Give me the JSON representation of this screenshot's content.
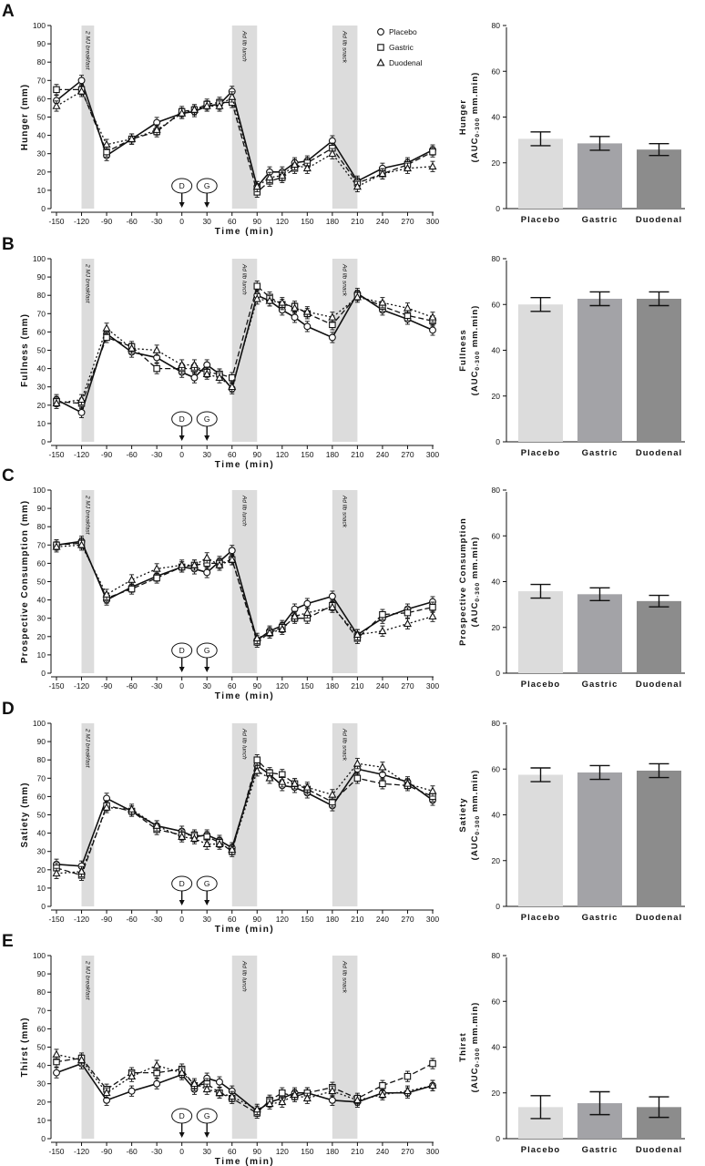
{
  "legend": [
    {
      "name": "Placebo",
      "marker": "circle",
      "dash": "solid"
    },
    {
      "name": "Gastric",
      "marker": "square",
      "dash": "dashed"
    },
    {
      "name": "Duodenal",
      "marker": "triangle",
      "dash": "dotted"
    }
  ],
  "shaded_labels": [
    "2 MJ breakfast",
    "Ad lib lunch",
    "Ad lib snack"
  ],
  "infusion_markers": [
    {
      "label": "D",
      "x": 0
    },
    {
      "label": "G",
      "x": 30
    }
  ],
  "colors": {
    "placebo_bar": "#dcdcdc",
    "gastric_bar": "#a3a3a7",
    "duodenal_bar": "#8c8c8c",
    "shade": "#dcdcdc",
    "ink": "#111111"
  },
  "chart_data": [
    {
      "panel": "A",
      "type": "line",
      "ylabel": "Hunger (mm)",
      "xlabel": "Time (min)",
      "ylim": [
        0,
        100
      ],
      "xlim": [
        -150,
        300
      ],
      "x": [
        -150,
        -120,
        -90,
        -60,
        -30,
        0,
        15,
        30,
        45,
        60,
        90,
        105,
        120,
        135,
        150,
        180,
        210,
        240,
        270,
        300
      ],
      "series": [
        {
          "name": "Placebo",
          "values": [
            59,
            70,
            29,
            38,
            47,
            52,
            53,
            56,
            57,
            64,
            12,
            20,
            20,
            25,
            26,
            37,
            15,
            22,
            25,
            32
          ]
        },
        {
          "name": "Gastric",
          "values": [
            65,
            65,
            31,
            38,
            42,
            53,
            54,
            57,
            58,
            58,
            9,
            15,
            17,
            22,
            25,
            33,
            14,
            19,
            24,
            31
          ]
        },
        {
          "name": "Duodenal",
          "values": [
            56,
            64,
            35,
            38,
            43,
            52,
            54,
            56,
            56,
            61,
            12,
            17,
            18,
            24,
            22,
            30,
            12,
            19,
            22,
            23
          ]
        }
      ]
    },
    {
      "panel": "A",
      "type": "bar",
      "ylabel": "Hunger",
      "ylabel_unit": "(AUC",
      "ylabel_sub": "0-300",
      "ylabel_unit_end": " mm.min)",
      "ylim": [
        0,
        80
      ],
      "categories": [
        "Placebo",
        "Gastric",
        "Duodenal"
      ],
      "values": [
        30.5,
        28.5,
        25.8
      ],
      "errors": [
        3,
        3,
        2.6
      ]
    },
    {
      "panel": "B",
      "type": "line",
      "ylabel": "Fullness (mm)",
      "xlabel": "Time (min)",
      "ylim": [
        0,
        100
      ],
      "xlim": [
        -150,
        300
      ],
      "x": [
        -150,
        -120,
        -90,
        -60,
        -30,
        0,
        15,
        30,
        45,
        60,
        90,
        105,
        120,
        135,
        150,
        180,
        210,
        240,
        270,
        300
      ],
      "series": [
        {
          "name": "Placebo",
          "values": [
            23,
            16,
            59,
            49,
            46,
            38,
            35,
            42,
            37,
            29,
            80,
            77,
            72,
            68,
            63,
            57,
            81,
            72,
            67,
            61
          ]
        },
        {
          "name": "Gastric",
          "values": [
            22,
            21,
            57,
            52,
            40,
            40,
            40,
            38,
            37,
            35,
            85,
            79,
            75,
            74,
            70,
            64,
            80,
            74,
            69,
            66
          ]
        },
        {
          "name": "Duodenal",
          "values": [
            21,
            23,
            62,
            51,
            50,
            42,
            42,
            37,
            35,
            30,
            78,
            77,
            76,
            73,
            71,
            68,
            79,
            76,
            73,
            68
          ]
        }
      ]
    },
    {
      "panel": "B",
      "type": "bar",
      "ylabel": "Fullness",
      "ylabel_unit": "(AUC",
      "ylabel_sub": "0-300",
      "ylabel_unit_end": " mm.min)",
      "ylim": [
        0,
        80
      ],
      "categories": [
        "Placebo",
        "Gastric",
        "Duodenal"
      ],
      "values": [
        60,
        62.5,
        62.5
      ],
      "errors": [
        3,
        3,
        3
      ]
    },
    {
      "panel": "C",
      "type": "line",
      "ylabel": "Prospective Consumption (mm)",
      "xlabel": "Time (min)",
      "ylim": [
        0,
        100
      ],
      "xlim": [
        -150,
        300
      ],
      "x": [
        -150,
        -120,
        -90,
        -60,
        -30,
        0,
        15,
        30,
        45,
        60,
        90,
        105,
        120,
        135,
        150,
        180,
        210,
        240,
        270,
        300
      ],
      "series": [
        {
          "name": "Placebo",
          "values": [
            70,
            72,
            40,
            47,
            53,
            58,
            57,
            55,
            61,
            67,
            18,
            23,
            26,
            35,
            38,
            42,
            21,
            30,
            35,
            39
          ]
        },
        {
          "name": "Gastric",
          "values": [
            70,
            71,
            41,
            46,
            52,
            58,
            59,
            60,
            60,
            62,
            17,
            22,
            25,
            30,
            30,
            37,
            19,
            32,
            33,
            36
          ]
        },
        {
          "name": "Duodenal",
          "values": [
            69,
            70,
            43,
            51,
            57,
            59,
            59,
            63,
            59,
            62,
            19,
            22,
            24,
            31,
            33,
            36,
            21,
            23,
            27,
            31
          ]
        }
      ]
    },
    {
      "panel": "C",
      "type": "bar",
      "ylabel": "Prospective Consumption",
      "ylabel_unit": "(AUC",
      "ylabel_sub": "0-300",
      "ylabel_unit_end": " mm.min)",
      "ylim": [
        0,
        80
      ],
      "categories": [
        "Placebo",
        "Gastric",
        "Duodenal"
      ],
      "values": [
        35.8,
        34.5,
        31.5
      ],
      "errors": [
        3,
        2.8,
        2.5
      ]
    },
    {
      "panel": "D",
      "type": "line",
      "ylabel": "Satiety (mm)",
      "xlabel": "Time (min)",
      "ylim": [
        0,
        100
      ],
      "xlim": [
        -150,
        300
      ],
      "x": [
        -150,
        -120,
        -90,
        -60,
        -30,
        0,
        15,
        30,
        45,
        60,
        90,
        105,
        120,
        135,
        150,
        180,
        210,
        240,
        270,
        300
      ],
      "series": [
        {
          "name": "Placebo",
          "values": [
            23,
            22,
            59,
            52,
            44,
            41,
            38,
            39,
            36,
            32,
            77,
            72,
            66,
            65,
            62,
            55,
            75,
            72,
            68,
            58
          ]
        },
        {
          "name": "Gastric",
          "values": [
            21,
            17,
            55,
            52,
            42,
            39,
            39,
            38,
            35,
            30,
            80,
            73,
            72,
            67,
            64,
            57,
            70,
            67,
            66,
            60
          ]
        },
        {
          "name": "Duodenal",
          "values": [
            18,
            19,
            54,
            53,
            44,
            38,
            37,
            34,
            34,
            31,
            74,
            70,
            68,
            67,
            65,
            61,
            78,
            76,
            67,
            63
          ]
        }
      ]
    },
    {
      "panel": "D",
      "type": "bar",
      "ylabel": "Satiety",
      "ylabel_unit": "(AUC",
      "ylabel_sub": "0-300",
      "ylabel_unit_end": " mm.min)",
      "ylim": [
        0,
        80
      ],
      "categories": [
        "Placebo",
        "Gastric",
        "Duodenal"
      ],
      "values": [
        57.5,
        58.5,
        59.3
      ],
      "errors": [
        3,
        3,
        3
      ]
    },
    {
      "panel": "E",
      "type": "line",
      "ylabel": "Thirst (mm)",
      "xlabel": "Time (min)",
      "ylim": [
        0,
        100
      ],
      "xlim": [
        -150,
        300
      ],
      "x": [
        -150,
        -120,
        -90,
        -60,
        -30,
        0,
        15,
        30,
        45,
        60,
        90,
        105,
        120,
        135,
        150,
        180,
        210,
        240,
        270,
        300
      ],
      "series": [
        {
          "name": "Placebo",
          "values": [
            36,
            41,
            21,
            26,
            30,
            35,
            27,
            33,
            31,
            26,
            15,
            20,
            22,
            25,
            25,
            21,
            20,
            25,
            25,
            29
          ]
        },
        {
          "name": "Gastric",
          "values": [
            42,
            44,
            27,
            36,
            36,
            38,
            29,
            30,
            25,
            22,
            14,
            21,
            25,
            23,
            25,
            28,
            22,
            29,
            34,
            41
          ]
        },
        {
          "name": "Duodenal",
          "values": [
            46,
            43,
            25,
            34,
            40,
            36,
            30,
            27,
            25,
            23,
            16,
            19,
            20,
            24,
            22,
            26,
            21,
            24,
            26,
            29
          ]
        }
      ]
    },
    {
      "panel": "E",
      "type": "bar",
      "ylabel": "Thirst",
      "ylabel_unit": "(AUC",
      "ylabel_sub": "0-300",
      "ylabel_unit_end": " mm.min)",
      "ylim": [
        0,
        80
      ],
      "categories": [
        "Placebo",
        "Gastric",
        "Duodenal"
      ],
      "values": [
        13.8,
        15.5,
        13.8
      ],
      "errors": [
        5,
        5,
        4.5
      ]
    }
  ]
}
